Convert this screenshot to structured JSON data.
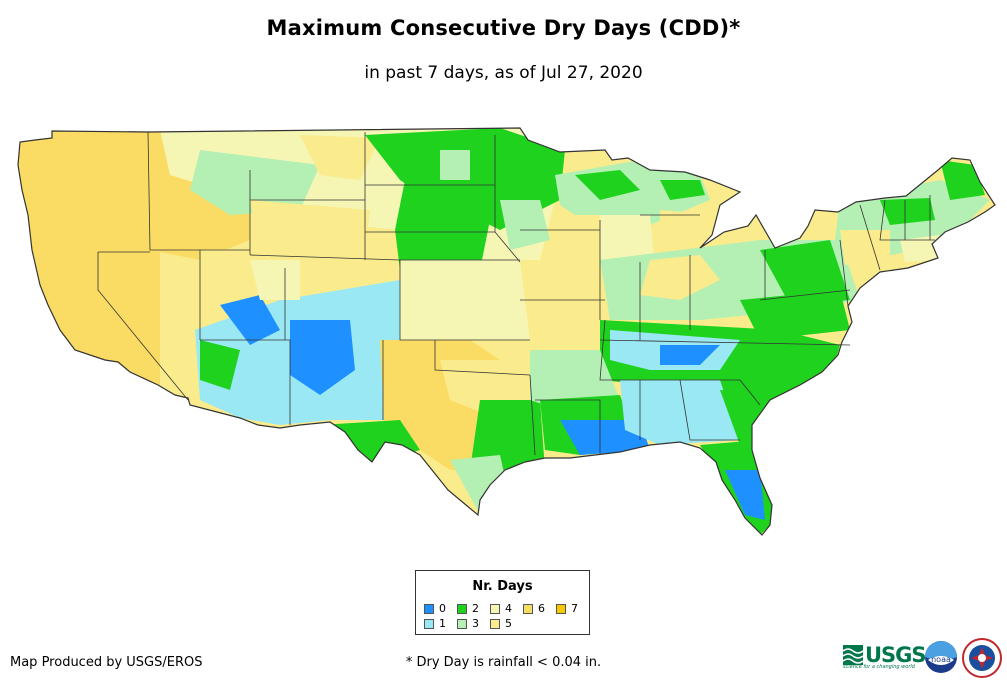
{
  "title": "Maximum Consecutive Dry Days (CDD)*",
  "subtitle": "in past 7 days, as of Jul 27, 2020",
  "legend": {
    "title": "Nr. Days",
    "items": [
      {
        "label": "0",
        "color": "#1e90ff"
      },
      {
        "label": "1",
        "color": "#9be8f5"
      },
      {
        "label": "2",
        "color": "#1ed21e"
      },
      {
        "label": "3",
        "color": "#b4f0b4"
      },
      {
        "label": "4",
        "color": "#f5f5b4"
      },
      {
        "label": "5",
        "color": "#faeb8c"
      },
      {
        "label": "6",
        "color": "#fadc64"
      },
      {
        "label": "7",
        "color": "#f5c800"
      }
    ]
  },
  "credit": "Map Produced by USGS/EROS",
  "footnote": "* Dry Day is rainfall < 0.04 in.",
  "logos": {
    "usgs_text": "USGS",
    "usgs_tagline": "science for a changing world",
    "noaa_text": "noaa"
  }
}
